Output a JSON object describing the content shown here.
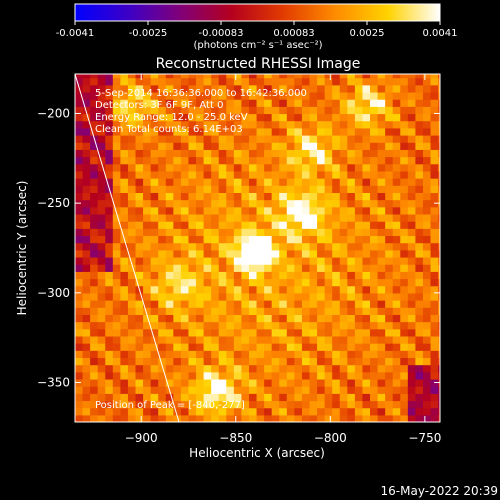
{
  "colorbar": {
    "min_label": "-0.0041",
    "max_label": "0.0041",
    "tick_labels": [
      "-0.0041",
      "-0.0025",
      "-0.00083",
      "0.00083",
      "0.0025",
      "0.0041"
    ],
    "unit_label": "(photons cm⁻² s⁻¹ asec⁻²)",
    "colors": [
      "#0000ff",
      "#3b00c8",
      "#80007a",
      "#b4001e",
      "#e23c00",
      "#ff8c00",
      "#ffd200",
      "#ffffff"
    ]
  },
  "chart_data": {
    "type": "heatmap",
    "title": "Reconstructed RHESSI Image",
    "xlabel": "Heliocentric X (arcsec)",
    "ylabel": "Heliocentric Y (arcsec)",
    "xlim": [
      -935,
      -742
    ],
    "ylim": [
      -372,
      -178
    ],
    "x_ticks": [
      -900,
      -850,
      -800,
      -750
    ],
    "y_ticks": [
      -200,
      -250,
      -300,
      -350
    ],
    "x_tick_labels": [
      "−900",
      "−850",
      "−800",
      "−750"
    ],
    "y_tick_labels": [
      "−200",
      "−250",
      "−300",
      "−350"
    ],
    "annotations": [
      "5-Sep-2014 16:36:36.000 to 16:42:36.000",
      "Detectors: 3F 6F 9F, Att 0",
      "Energy Range: 12.0 - 25.0 keV",
      "Clean     Total counts: 6.14E+03"
    ],
    "peak_label": "Position of Peak = [-840,-277]",
    "peak": {
      "x": -840,
      "y": -277,
      "value": 0.0041
    },
    "secondary_sources": [
      {
        "x": -860,
        "y": -355,
        "value": 0.0026
      },
      {
        "x": -815,
        "y": -255,
        "value": 0.0024
      },
      {
        "x": -780,
        "y": -195,
        "value": 0.0022
      },
      {
        "x": -810,
        "y": -220,
        "value": 0.002
      },
      {
        "x": -905,
        "y": -195,
        "value": 0.0018
      },
      {
        "x": -880,
        "y": -295,
        "value": 0.0016
      }
    ],
    "limb_line": [
      [
        -935,
        -178
      ],
      [
        -880,
        -372
      ]
    ],
    "vmin": -0.0041,
    "vmax": 0.0041
  },
  "footer": {
    "timestamp": "16-May-2022 20:39"
  }
}
